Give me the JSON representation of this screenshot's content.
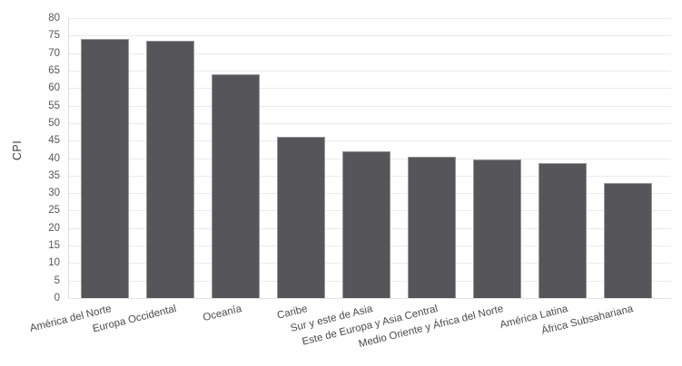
{
  "chart_data": {
    "type": "bar",
    "categories": [
      "América del Norte",
      "Europa Occidental",
      "Oceanía",
      "Caribe",
      "Sur y este de Asia",
      "Este de Europa y Asia Central",
      "Medio Oriente y África del Norte",
      "América Latina",
      "África Subsahariana"
    ],
    "values": [
      74,
      73.5,
      64,
      46,
      42,
      40.5,
      39.5,
      38.7,
      33
    ],
    "ylabel": "CPI",
    "ylim": [
      0,
      80
    ],
    "ytick_step": 5,
    "grid": "horizontal",
    "legend": "none",
    "colors": {
      "bar_fill": "#56565a",
      "bar_border": "#97979a",
      "gridline": "#ebebeb",
      "tick_label": "#565656",
      "axis_title": "#3d3d3d"
    }
  }
}
